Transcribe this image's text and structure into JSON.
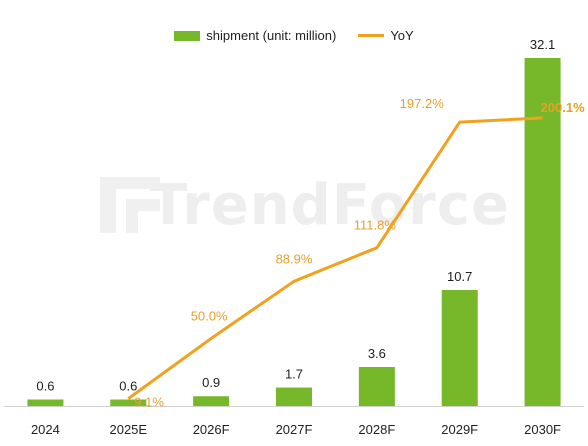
{
  "colors": {
    "bar": "#76b82a",
    "line": "#f0a21e",
    "yoy_label": "#e8a026",
    "axis_line": "#d0d0d0",
    "text": "#222222"
  },
  "watermark": {
    "text": "TrendForce"
  },
  "chart_data": {
    "type": "bar",
    "title": "",
    "xlabel": "",
    "ylabel": "",
    "legend_position": "top-center",
    "grid": false,
    "categories": [
      "2024",
      "2025E",
      "2026F",
      "2027F",
      "2028F",
      "2029F",
      "2030F"
    ],
    "series": [
      {
        "name": "shipment (unit: million)",
        "type": "bar",
        "values": [
          0.6,
          0.6,
          0.9,
          1.7,
          3.6,
          10.7,
          32.1
        ],
        "labels": [
          "0.6",
          "0.6",
          "0.9",
          "1.7",
          "3.6",
          "10.7",
          "32.1"
        ]
      },
      {
        "name": "YoY",
        "type": "line",
        "values": [
          null,
          9.1,
          50.0,
          88.9,
          111.8,
          197.2,
          200.1
        ],
        "labels": [
          "",
          "9.1%",
          "50.0%",
          "88.9%",
          "111.8%",
          "197.2%",
          "200.1%"
        ]
      }
    ]
  }
}
